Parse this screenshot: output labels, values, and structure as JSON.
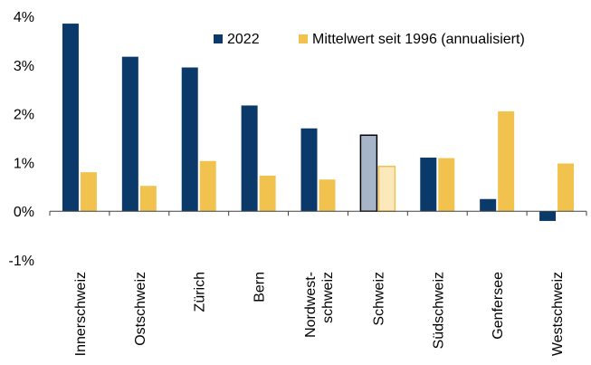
{
  "chart_data": {
    "type": "bar",
    "categories": [
      "Innerschweiz",
      "Ostschweiz",
      "Zürich",
      "Bern",
      "Nordwest-\nschweiz",
      "Schweiz",
      "Südschweiz",
      "Genfersee",
      "Westschweiz"
    ],
    "series": [
      {
        "name": "2022",
        "values": [
          3.85,
          3.17,
          2.95,
          2.17,
          1.7,
          1.56,
          1.1,
          0.25,
          -0.2
        ]
      },
      {
        "name": "Mittelwert seit 1996 (annualisiert)",
        "values": [
          0.8,
          0.52,
          1.03,
          0.73,
          0.65,
          0.92,
          1.09,
          2.05,
          0.98
        ]
      }
    ],
    "highlight_category": "Schweiz",
    "ylim": [
      -1,
      4
    ],
    "yticks": [
      {
        "value": 4,
        "label": "4%"
      },
      {
        "value": 3,
        "label": "3%"
      },
      {
        "value": 2,
        "label": "2%"
      },
      {
        "value": 1,
        "label": "1%"
      },
      {
        "value": 0,
        "label": "0%"
      },
      {
        "value": -1,
        "label": "-1%"
      }
    ],
    "legend_position": "top-right",
    "grid": false,
    "colors": {
      "series_2022": "#0b3a6a",
      "series_mean": "#f2c24e",
      "highlight_2022": "#a6b6c8",
      "highlight_mean": "#fbe8bb",
      "highlight_outline_2022": "#000000",
      "highlight_outline_mean": "#f2c24e",
      "axis": "#404040"
    }
  }
}
